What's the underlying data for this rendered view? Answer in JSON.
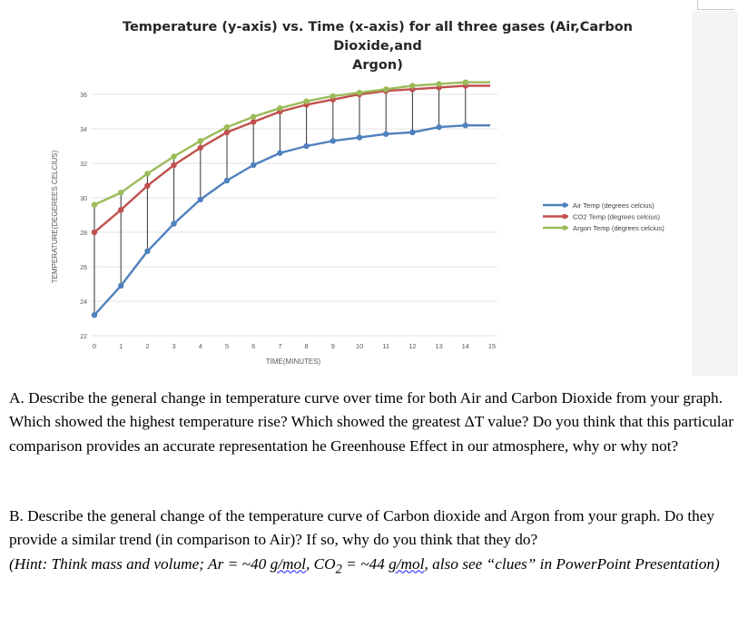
{
  "chart_data": {
    "type": "line",
    "title": "Temperature (y-axis) vs. Time (x-axis) for all three gases (Air,Carbon Dioxide,and Argon)",
    "title_lines": [
      "Temperature (y-axis) vs. Time (x-axis) for all three gases (Air,Carbon Dioxide,and",
      "Argon)"
    ],
    "xlabel": "TIME(MINUTES)",
    "ylabel": "TEMPERATURE(DEGEREES CELCIUS)",
    "xlim": [
      0,
      15
    ],
    "ylim": [
      22,
      36
    ],
    "x_ticks": [
      0,
      1,
      2,
      3,
      4,
      5,
      6,
      7,
      8,
      9,
      10,
      11,
      12,
      13,
      14,
      15
    ],
    "y_ticks": [
      22,
      24,
      26,
      28,
      30,
      32,
      34,
      36
    ],
    "grid": true,
    "legend_position": "right",
    "x": [
      0,
      1,
      2,
      3,
      4,
      5,
      6,
      7,
      8,
      9,
      10,
      11,
      12,
      13,
      14
    ],
    "series": [
      {
        "name": "Air Temp (degrees celcius)",
        "color": "#4f81bd",
        "values": [
          23.2,
          24.9,
          26.9,
          28.5,
          29.9,
          31.0,
          31.9,
          32.6,
          33.0,
          33.3,
          33.5,
          33.7,
          33.8,
          34.1,
          34.2
        ]
      },
      {
        "name": "CO2 Temp (degrees celcius)",
        "color": "#c0504d",
        "values": [
          28.0,
          29.3,
          30.7,
          31.9,
          32.9,
          33.8,
          34.4,
          35.0,
          35.4,
          35.7,
          36.0,
          36.2,
          36.3,
          36.4,
          36.5
        ]
      },
      {
        "name": "Argon Temp (degrees celcius)",
        "color": "#9bbb59",
        "values": [
          29.6,
          30.3,
          31.4,
          32.4,
          33.3,
          34.1,
          34.7,
          35.2,
          35.6,
          35.9,
          36.1,
          36.3,
          36.5,
          36.6,
          36.7
        ]
      }
    ],
    "drop_lines": true
  },
  "question_a": "A. Describe the general change in temperature curve over time for both Air and Carbon Dioxide from your graph. Which showed the highest temperature rise? Which showed the greatest ΔT value? Do you think that this particular comparison provides an accurate representation he Greenhouse Effect in our atmosphere, why or why not?",
  "question_b": "B. Describe the general change of the temperature curve of Carbon dioxide and Argon from your graph. Do they provide a similar trend (in comparison to Air)? If so, why do you think that they do?",
  "hint": {
    "open": "(Hint: Think mass and volume; Ar = ~40 ",
    "unit1": "g/mol",
    "mid": ", CO",
    "sub": "2",
    "mid2": " = ~44 ",
    "unit2": "g/mol",
    "close": ", also see “clues” in PowerPoint Presentation)"
  }
}
